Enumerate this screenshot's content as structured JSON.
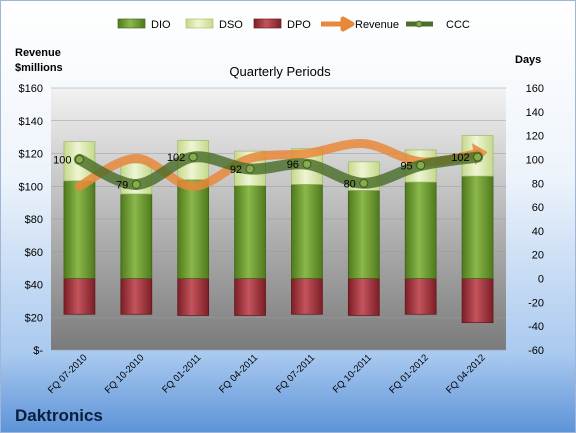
{
  "chart_data": {
    "type": "bar",
    "title": "Quarterly Periods",
    "company": "Daktronics",
    "left_axis_label": [
      "Revenue",
      "$millions"
    ],
    "right_axis_label": "Days",
    "left_ylim": [
      0,
      160
    ],
    "left_ticks": [
      "$-",
      "$20",
      "$40",
      "$60",
      "$80",
      "$100",
      "$120",
      "$140",
      "$160"
    ],
    "right_ylim": [
      -60,
      160
    ],
    "right_ticks": [
      "-60",
      "-40",
      "-20",
      "0",
      "20",
      "40",
      "60",
      "80",
      "100",
      "120",
      "140",
      "160"
    ],
    "categories": [
      "FQ 07-2010",
      "FQ 10-2010",
      "FQ 01-2011",
      "FQ 04-2011",
      "FQ 07-2011",
      "FQ 10-2011",
      "FQ 01-2012",
      "FQ 04-2012"
    ],
    "legend": [
      "DIO",
      "DSO",
      "DPO",
      "Revenue",
      "CCC"
    ],
    "series": {
      "DIO": [
        82,
        71,
        83,
        78,
        79,
        74,
        81,
        86
      ],
      "DSO": [
        33,
        26,
        33,
        29,
        30,
        24,
        27,
        34
      ],
      "DPO": [
        -30,
        -30,
        -31,
        -31,
        -30,
        -31,
        -30,
        -37
      ],
      "Revenue": [
        100,
        117,
        100,
        117,
        120,
        126,
        115,
        120
      ],
      "CCC": [
        100,
        79,
        102,
        92,
        96,
        80,
        95,
        102
      ]
    },
    "ccc_labels": [
      "100",
      "79",
      "102",
      "92",
      "96",
      "80",
      "95",
      "102"
    ],
    "colors": {
      "DIO": "#6e9a2f",
      "DSO": "#d7e7a8",
      "DPO": "#9c2a33",
      "Revenue": "#e8883a",
      "CCC": "#4b6e2a",
      "plot_top": "#f1f1f1",
      "plot_bottom": "#7d7d7d"
    }
  }
}
